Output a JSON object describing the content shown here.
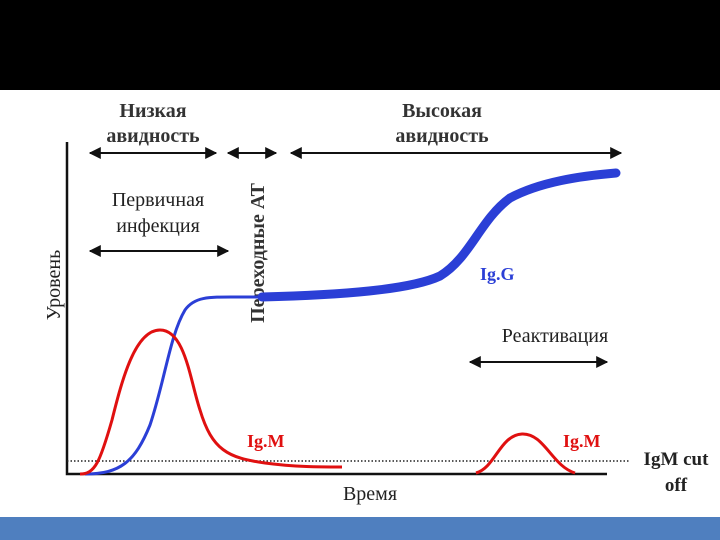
{
  "header": {
    "low_avidity": [
      "Низкая",
      "авидность"
    ],
    "high_avidity": [
      "Высокая",
      "авидность"
    ],
    "transitional": "Переходные АТ"
  },
  "labels": {
    "primary_infection": [
      "Первичная",
      "инфекция"
    ],
    "reactivation": "Реактивация",
    "y_axis": "Уровень",
    "x_axis": "Время",
    "igg": "Ig.G",
    "igm_primary": "Ig.M",
    "igm_reactivation": "Ig.M",
    "cutoff": [
      "IgM cut",
      "off"
    ]
  },
  "colors": {
    "top_bar": "#000000",
    "bottom_bar": "#4f7fbf",
    "igg": "#2b3fd6",
    "igm": "#e01010",
    "axes": "#111111"
  }
}
